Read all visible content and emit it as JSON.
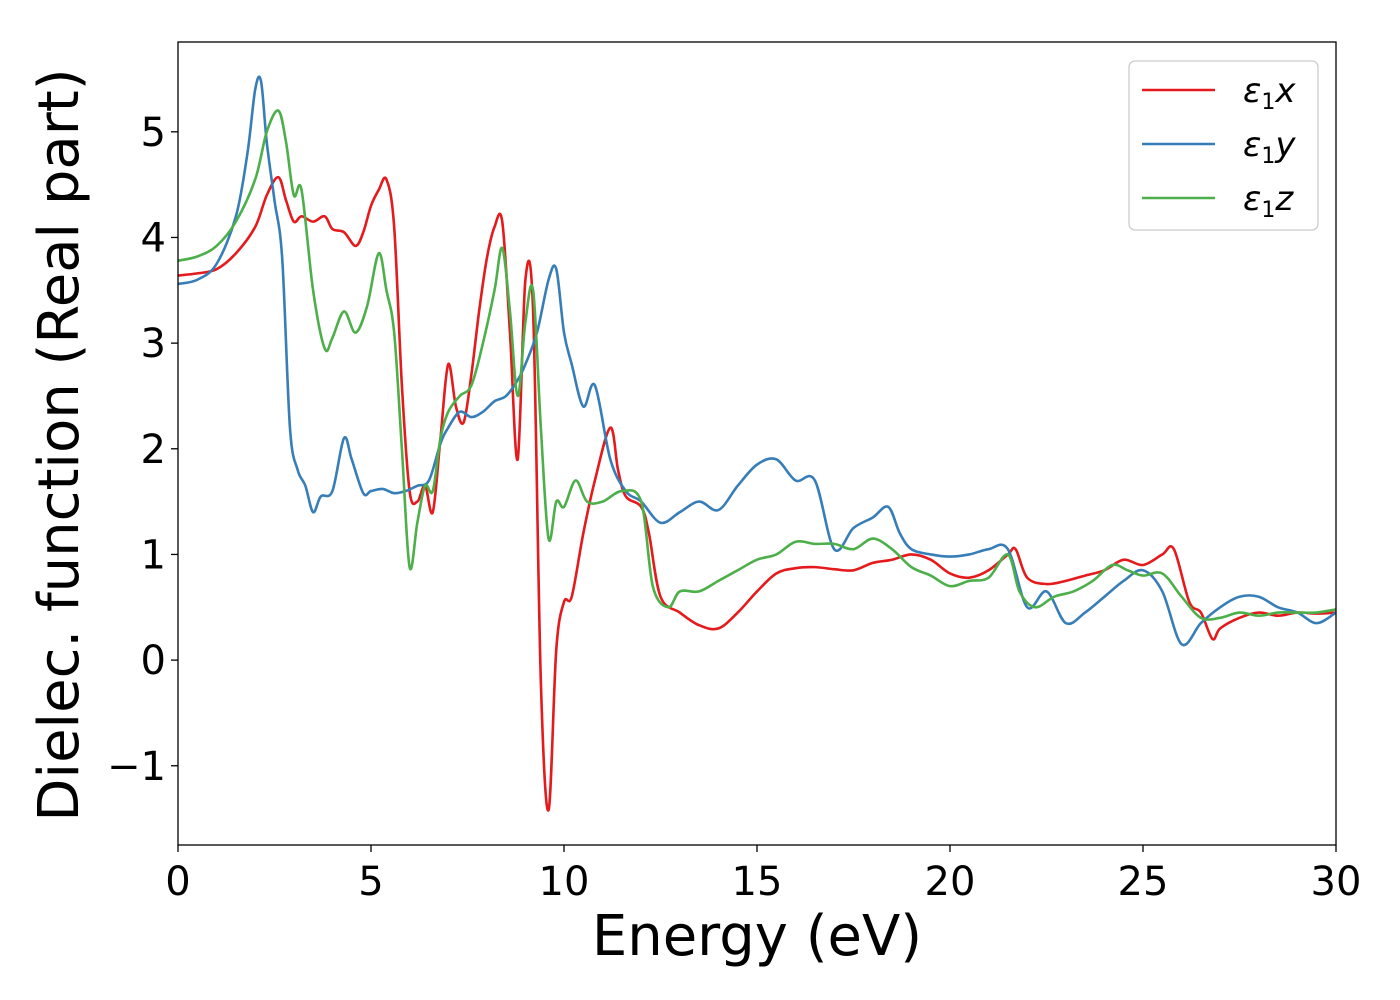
{
  "chart_data": {
    "type": "line",
    "title": "",
    "xlabel": "Energy (eV)",
    "ylabel": "Dielec. function (Real part)",
    "xlim": [
      0,
      30
    ],
    "ylim": [
      -1.75,
      5.85
    ],
    "xticks": [
      0,
      5,
      10,
      15,
      20,
      25,
      30
    ],
    "xtick_labels": [
      "0",
      "5",
      "10",
      "15",
      "20",
      "25",
      "30"
    ],
    "yticks": [
      -1,
      0,
      1,
      2,
      3,
      4,
      5
    ],
    "ytick_labels": [
      "−1",
      "0",
      "1",
      "2",
      "3",
      "4",
      "5"
    ],
    "grid": false,
    "legend_position": "top-right",
    "series": [
      {
        "name": "ε₁x",
        "legend": {
          "symbol": "ε",
          "sub": "1",
          "suffix": "x"
        },
        "color": "#e41a1c",
        "x": [
          0,
          0.5,
          1,
          1.5,
          2,
          2.3,
          2.6,
          2.8,
          3.0,
          3.2,
          3.5,
          3.8,
          4.0,
          4.3,
          4.6,
          4.8,
          5.0,
          5.2,
          5.4,
          5.6,
          5.8,
          6.0,
          6.2,
          6.4,
          6.6,
          6.8,
          7.0,
          7.2,
          7.4,
          7.6,
          7.8,
          8.0,
          8.2,
          8.4,
          8.6,
          8.8,
          9.0,
          9.2,
          9.4,
          9.6,
          9.8,
          10.0,
          10.2,
          10.5,
          10.8,
          11.2,
          11.4,
          11.6,
          12.0,
          12.2,
          12.5,
          13.0,
          13.5,
          14.0,
          14.5,
          15.0,
          15.5,
          16.0,
          16.5,
          17.0,
          17.5,
          18.0,
          18.5,
          19.0,
          19.5,
          20.0,
          20.5,
          21.0,
          21.5,
          21.7,
          22.0,
          22.5,
          23.0,
          23.5,
          24.0,
          24.5,
          25.0,
          25.5,
          25.8,
          26.2,
          26.5,
          26.8,
          27.0,
          27.5,
          28.0,
          28.5,
          29.0,
          29.5,
          30.0
        ],
        "y": [
          3.64,
          3.66,
          3.7,
          3.85,
          4.1,
          4.4,
          4.57,
          4.35,
          4.15,
          4.2,
          4.15,
          4.2,
          4.08,
          4.05,
          3.92,
          4.05,
          4.3,
          4.45,
          4.55,
          4.1,
          2.6,
          1.6,
          1.5,
          1.65,
          1.4,
          2.1,
          2.8,
          2.4,
          2.25,
          2.7,
          3.3,
          3.8,
          4.1,
          4.15,
          3.1,
          1.9,
          3.6,
          3.3,
          -0.2,
          -1.42,
          0.1,
          0.55,
          0.6,
          1.2,
          1.7,
          2.2,
          1.8,
          1.55,
          1.45,
          1.2,
          0.6,
          0.45,
          0.33,
          0.3,
          0.45,
          0.65,
          0.82,
          0.87,
          0.88,
          0.86,
          0.85,
          0.92,
          0.95,
          1.0,
          0.95,
          0.82,
          0.78,
          0.85,
          1.0,
          1.05,
          0.78,
          0.72,
          0.75,
          0.8,
          0.85,
          0.95,
          0.9,
          1.0,
          1.05,
          0.55,
          0.45,
          0.2,
          0.3,
          0.4,
          0.45,
          0.42,
          0.45,
          0.44,
          0.45
        ]
      },
      {
        "name": "ε₁y",
        "legend": {
          "symbol": "ε",
          "sub": "1",
          "suffix": "y"
        },
        "color": "#377eb8",
        "x": [
          0,
          0.5,
          1,
          1.5,
          1.8,
          2.0,
          2.15,
          2.3,
          2.5,
          2.7,
          2.9,
          3.1,
          3.3,
          3.5,
          3.7,
          4.0,
          4.3,
          4.5,
          4.8,
          5.0,
          5.3,
          5.6,
          5.9,
          6.2,
          6.5,
          6.8,
          7.0,
          7.3,
          7.6,
          7.9,
          8.2,
          8.5,
          8.8,
          9.0,
          9.3,
          9.6,
          9.8,
          10.0,
          10.2,
          10.5,
          10.8,
          11.2,
          11.6,
          12.0,
          12.5,
          13.0,
          13.5,
          14.0,
          14.5,
          15.0,
          15.5,
          16.0,
          16.5,
          17.0,
          17.5,
          18.0,
          18.4,
          18.7,
          19.0,
          19.5,
          20.0,
          20.5,
          21.0,
          21.5,
          22.0,
          22.5,
          23.0,
          23.5,
          24.0,
          24.5,
          25.0,
          25.5,
          26.0,
          26.5,
          27.0,
          27.5,
          28.0,
          28.5,
          29.0,
          29.5,
          30.0
        ],
        "y": [
          3.56,
          3.6,
          3.75,
          4.2,
          4.8,
          5.4,
          5.48,
          4.9,
          4.35,
          3.8,
          2.2,
          1.8,
          1.65,
          1.4,
          1.55,
          1.6,
          2.1,
          1.9,
          1.58,
          1.6,
          1.62,
          1.58,
          1.6,
          1.65,
          1.7,
          2.05,
          2.2,
          2.35,
          2.3,
          2.35,
          2.45,
          2.5,
          2.65,
          2.8,
          3.1,
          3.6,
          3.7,
          3.1,
          2.8,
          2.4,
          2.6,
          1.9,
          1.6,
          1.5,
          1.3,
          1.4,
          1.5,
          1.42,
          1.65,
          1.85,
          1.9,
          1.7,
          1.7,
          1.05,
          1.25,
          1.35,
          1.45,
          1.2,
          1.05,
          1.0,
          0.98,
          1.0,
          1.05,
          1.05,
          0.5,
          0.65,
          0.35,
          0.45,
          0.6,
          0.75,
          0.85,
          0.65,
          0.15,
          0.35,
          0.5,
          0.6,
          0.6,
          0.5,
          0.45,
          0.35,
          0.45
        ]
      },
      {
        "name": "ε₁z",
        "legend": {
          "symbol": "ε",
          "sub": "1",
          "suffix": "z"
        },
        "color": "#4daf4a",
        "x": [
          0,
          0.5,
          1,
          1.5,
          2.0,
          2.3,
          2.6,
          2.8,
          3.0,
          3.2,
          3.5,
          3.8,
          4.0,
          4.3,
          4.6,
          4.9,
          5.2,
          5.4,
          5.6,
          5.8,
          6.0,
          6.2,
          6.4,
          6.6,
          6.8,
          7.0,
          7.3,
          7.6,
          7.9,
          8.2,
          8.4,
          8.6,
          8.8,
          9.0,
          9.2,
          9.4,
          9.6,
          9.8,
          10.0,
          10.3,
          10.6,
          11.0,
          11.5,
          12.0,
          12.3,
          12.7,
          13.0,
          13.5,
          14.0,
          14.5,
          15.0,
          15.5,
          16.0,
          16.5,
          17.0,
          17.5,
          18.0,
          18.5,
          19.0,
          19.5,
          20.0,
          20.5,
          21.0,
          21.5,
          21.8,
          22.2,
          22.7,
          23.2,
          23.7,
          24.2,
          24.6,
          25.0,
          25.5,
          26.0,
          26.5,
          27.0,
          27.5,
          28.0,
          28.5,
          29.0,
          29.5,
          30.0
        ],
        "y": [
          3.78,
          3.82,
          3.92,
          4.15,
          4.55,
          5.0,
          5.2,
          4.9,
          4.4,
          4.45,
          3.5,
          2.95,
          3.05,
          3.3,
          3.1,
          3.35,
          3.85,
          3.5,
          3.1,
          2.0,
          0.88,
          1.3,
          1.65,
          1.6,
          2.1,
          2.35,
          2.5,
          2.6,
          3.0,
          3.5,
          3.9,
          3.3,
          2.5,
          3.2,
          3.5,
          2.2,
          1.15,
          1.5,
          1.45,
          1.7,
          1.5,
          1.5,
          1.6,
          1.5,
          0.7,
          0.5,
          0.65,
          0.65,
          0.75,
          0.85,
          0.95,
          1.0,
          1.12,
          1.1,
          1.1,
          1.05,
          1.15,
          1.05,
          0.88,
          0.8,
          0.7,
          0.75,
          0.78,
          1.0,
          0.65,
          0.5,
          0.6,
          0.65,
          0.75,
          0.9,
          0.85,
          0.8,
          0.82,
          0.6,
          0.4,
          0.4,
          0.45,
          0.42,
          0.45,
          0.45,
          0.45,
          0.48
        ]
      }
    ]
  }
}
